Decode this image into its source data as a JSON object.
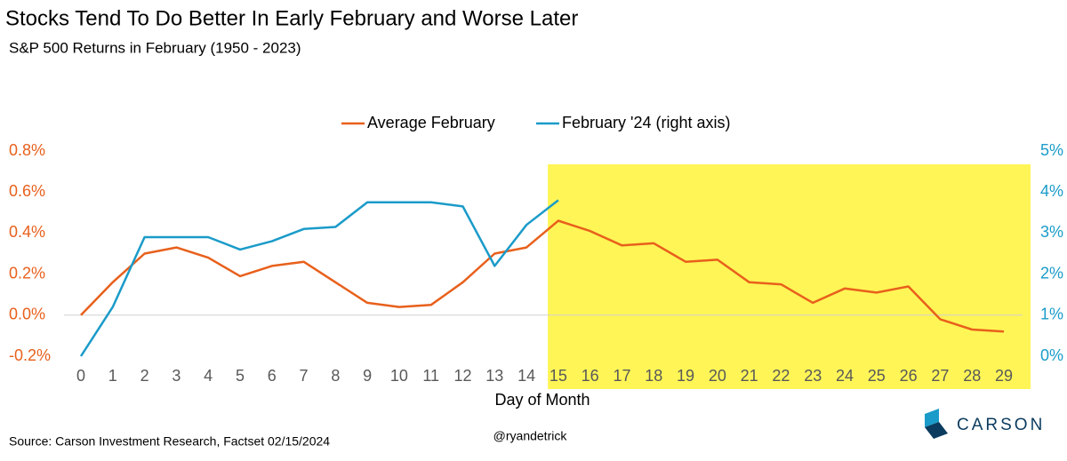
{
  "chart_data": {
    "type": "line",
    "title": "Stocks Tend To Do Better In Early February and Worse Later",
    "subtitle": "S&P 500 Returns in February (1950 - 2023)",
    "xlabel": "Day of Month",
    "source": "Source: Carson Investment Research, Factset 02/15/2024",
    "handle": "@ryandetrick",
    "logo": "CARSON",
    "categories": [
      "0",
      "1",
      "2",
      "3",
      "4",
      "5",
      "6",
      "7",
      "8",
      "9",
      "10",
      "11",
      "12",
      "13",
      "14",
      "15",
      "16",
      "17",
      "18",
      "19",
      "20",
      "21",
      "22",
      "23",
      "24",
      "25",
      "26",
      "27",
      "28",
      "29"
    ],
    "series": [
      {
        "name": "Average February",
        "color": "#e8601c",
        "values": [
          0.0,
          0.16,
          0.3,
          0.33,
          0.28,
          0.19,
          0.24,
          0.26,
          0.16,
          0.06,
          0.04,
          0.05,
          0.16,
          0.3,
          0.33,
          0.46,
          0.41,
          0.34,
          0.35,
          0.26,
          0.27,
          0.16,
          0.15,
          0.06,
          0.13,
          0.11,
          0.14,
          -0.02,
          -0.07,
          -0.08
        ]
      },
      {
        "name": "February '24 (right axis)",
        "color": "#1a9bc9",
        "axis": "y2",
        "values": [
          0.0,
          1.2,
          2.9,
          2.9,
          2.9,
          2.6,
          2.8,
          3.1,
          3.15,
          3.75,
          3.75,
          3.75,
          3.65,
          2.2,
          3.2,
          3.8,
          null,
          null,
          null,
          null,
          null,
          null,
          null,
          null,
          null,
          null,
          null,
          null,
          null,
          null
        ]
      }
    ],
    "ylim": [
      -0.2,
      0.8
    ],
    "yticks": [
      {
        "value": -0.2,
        "label": "-0.2%"
      },
      {
        "value": 0.0,
        "label": "0.0%"
      },
      {
        "value": 0.2,
        "label": "0.2%"
      },
      {
        "value": 0.4,
        "label": "0.4%"
      },
      {
        "value": 0.6,
        "label": "0.6%"
      },
      {
        "value": 0.8,
        "label": "0.8%"
      }
    ],
    "y2lim": [
      0,
      5
    ],
    "y2ticks": [
      {
        "value": 0,
        "label": "0%"
      },
      {
        "value": 1,
        "label": "1%"
      },
      {
        "value": 2,
        "label": "2%"
      },
      {
        "value": 3,
        "label": "3%"
      },
      {
        "value": 4,
        "label": "4%"
      },
      {
        "value": 5,
        "label": "5%"
      }
    ],
    "legend": "top"
  }
}
